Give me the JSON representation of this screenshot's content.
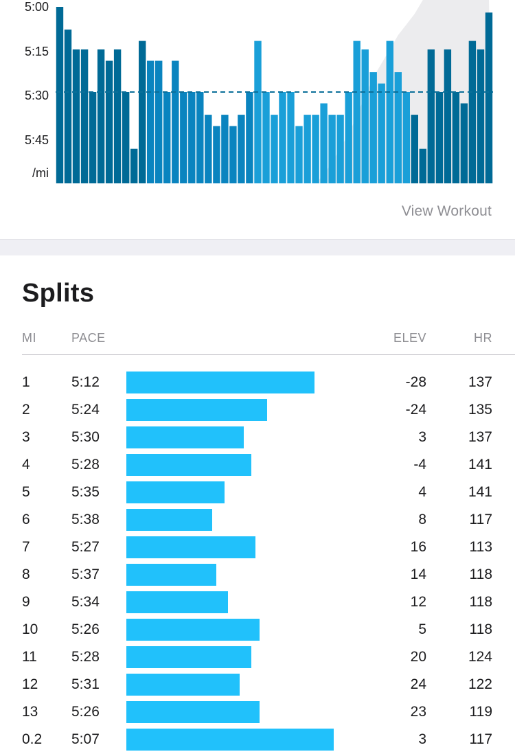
{
  "chart": {
    "y_tick_labels": [
      "5:00",
      "5:15",
      "5:30",
      "5:45",
      "/mi"
    ],
    "view_workout_label": "View Workout",
    "colors": {
      "bar_dark": "#006a96",
      "bar_mid": "#0a84bf",
      "bar_light": "#1a9fd8",
      "elevation_fill": "#ececee",
      "average_line": "#0b6f99"
    }
  },
  "chart_data": {
    "type": "bar",
    "y_unit": "/mi",
    "y_ticks": [
      "5:00",
      "5:15",
      "5:30",
      "5:45"
    ],
    "y_inverted": true,
    "ylim_seconds_per_mile": [
      300,
      360
    ],
    "average_pace_seconds": 330,
    "values_seconds_per_mile": [
      300,
      308,
      315,
      315,
      330,
      315,
      319,
      315,
      330,
      350,
      312,
      319,
      319,
      330,
      319,
      330,
      330,
      330,
      338,
      342,
      338,
      342,
      338,
      330,
      312,
      330,
      338,
      330,
      330,
      342,
      338,
      338,
      334,
      338,
      338,
      330,
      312,
      315,
      323,
      327,
      312,
      323,
      330,
      338,
      350,
      315,
      330,
      315,
      330,
      334,
      312,
      315,
      302
    ],
    "elevation_profile_relative": [
      0,
      0,
      0,
      0,
      0,
      0,
      0,
      0,
      0,
      0,
      0,
      0,
      0,
      0,
      0,
      0,
      0,
      0,
      0,
      0,
      0,
      0,
      0,
      0,
      0,
      0,
      0,
      0,
      0,
      0,
      0,
      0,
      0.05,
      0.12,
      0.2,
      0.28,
      0.38,
      0.5,
      0.6,
      0.68,
      0.76,
      0.84,
      0.9,
      0.96,
      1.0,
      1.0,
      1.0,
      1.0,
      1.0,
      1.0,
      1.0,
      1.0,
      1.0
    ]
  },
  "splits": {
    "title": "Splits",
    "headers": {
      "mi": "MI",
      "pace": "PACE",
      "elev": "ELEV",
      "hr": "HR"
    },
    "bar_color": "#21c1fb",
    "rows": [
      {
        "mi": "1",
        "pace": "5:12",
        "pace_seconds": 312,
        "elev": "-28",
        "hr": "137"
      },
      {
        "mi": "2",
        "pace": "5:24",
        "pace_seconds": 324,
        "elev": "-24",
        "hr": "135"
      },
      {
        "mi": "3",
        "pace": "5:30",
        "pace_seconds": 330,
        "elev": "3",
        "hr": "137"
      },
      {
        "mi": "4",
        "pace": "5:28",
        "pace_seconds": 328,
        "elev": "-4",
        "hr": "141"
      },
      {
        "mi": "5",
        "pace": "5:35",
        "pace_seconds": 335,
        "elev": "4",
        "hr": "141"
      },
      {
        "mi": "6",
        "pace": "5:38",
        "pace_seconds": 338,
        "elev": "8",
        "hr": "117"
      },
      {
        "mi": "7",
        "pace": "5:27",
        "pace_seconds": 327,
        "elev": "16",
        "hr": "113"
      },
      {
        "mi": "8",
        "pace": "5:37",
        "pace_seconds": 337,
        "elev": "14",
        "hr": "118"
      },
      {
        "mi": "9",
        "pace": "5:34",
        "pace_seconds": 334,
        "elev": "12",
        "hr": "118"
      },
      {
        "mi": "10",
        "pace": "5:26",
        "pace_seconds": 326,
        "elev": "5",
        "hr": "118"
      },
      {
        "mi": "11",
        "pace": "5:28",
        "pace_seconds": 328,
        "elev": "20",
        "hr": "124"
      },
      {
        "mi": "12",
        "pace": "5:31",
        "pace_seconds": 331,
        "elev": "24",
        "hr": "122"
      },
      {
        "mi": "13",
        "pace": "5:26",
        "pace_seconds": 326,
        "elev": "23",
        "hr": "119"
      },
      {
        "mi": "0.2",
        "pace": "5:07",
        "pace_seconds": 307,
        "elev": "3",
        "hr": "117"
      }
    ]
  }
}
